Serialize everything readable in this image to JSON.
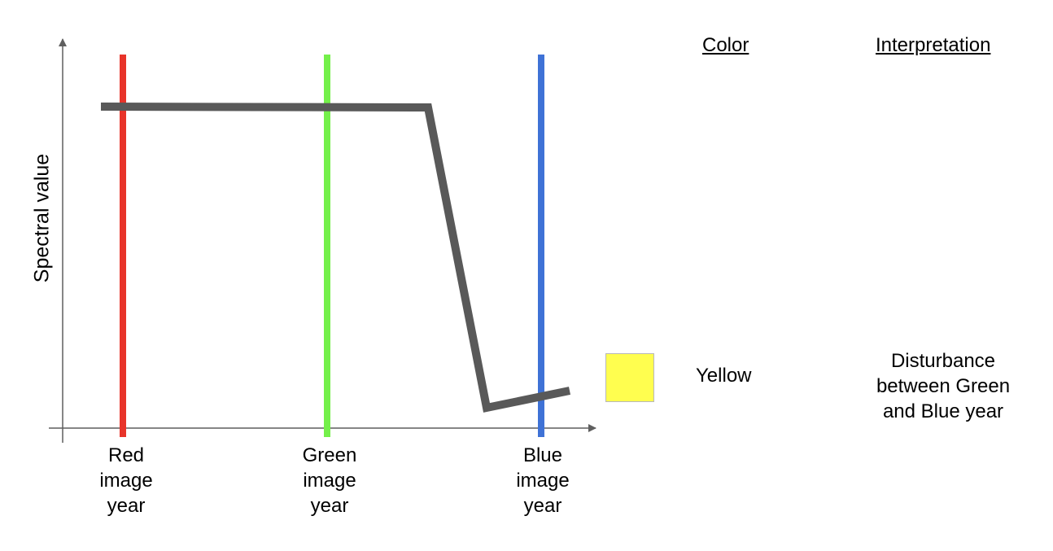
{
  "axes": {
    "y_label": "Spectral value"
  },
  "image_years": [
    {
      "lines": [
        "Red",
        "image",
        "year"
      ],
      "color": "#e8342a"
    },
    {
      "lines": [
        "Green",
        "image",
        "year"
      ],
      "color": "#74f04a"
    },
    {
      "lines": [
        "Blue",
        "image",
        "year"
      ],
      "color": "#3f72d6"
    }
  ],
  "trajectory": {
    "color": "#595959"
  },
  "table": {
    "color_header": "Color",
    "interpretation_header": "Interpretation",
    "row": {
      "swatch_color": "#fffe4f",
      "color_name": "Yellow",
      "interpretation_lines": [
        "Disturbance",
        "between Green",
        "and Blue year"
      ]
    }
  }
}
